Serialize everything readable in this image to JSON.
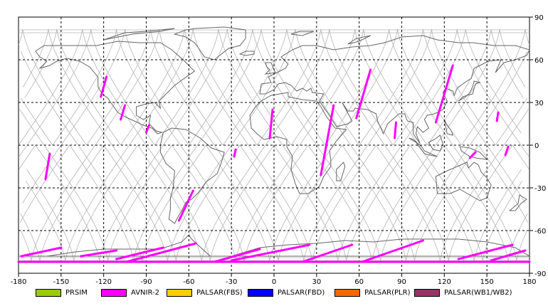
{
  "map": {
    "lon_ticks": [
      "-180",
      "-150",
      "-120",
      "-90",
      "-60",
      "-30",
      "0",
      "30",
      "60",
      "90",
      "120",
      "150",
      "180"
    ],
    "lat_ticks": [
      "90",
      "60",
      "30",
      "0",
      "-30",
      "-60",
      "-90"
    ],
    "lon_range": [
      -180,
      180
    ],
    "lat_range": [
      -90,
      90
    ],
    "grid": "dashed",
    "orbit_track_color": "#b4b4b4",
    "coastline_color": "#666666"
  },
  "legend": [
    {
      "label": "PRSIM",
      "color": "#99cc00"
    },
    {
      "label": "AVNIR-2",
      "color": "#ff00ff"
    },
    {
      "label": "PALSAR(FBS)",
      "color": "#ffcc00"
    },
    {
      "label": "PALSAR(FBD)",
      "color": "#0000ff"
    },
    {
      "label": "PALSAR(PLR)",
      "color": "#ff6600"
    },
    {
      "label": "PALSAR(WB1/WB2)",
      "color": "#993366"
    }
  ],
  "chart_data": {
    "type": "map",
    "series": [
      {
        "name": "AVNIR-2",
        "color": "#ff00ff",
        "segments": [
          [
            [
              -118,
              48
            ],
            [
              -122,
              34
            ]
          ],
          [
            [
              -105,
              28
            ],
            [
              -108,
              18
            ]
          ],
          [
            [
              -88,
              14
            ],
            [
              -90,
              9
            ]
          ],
          [
            [
              -158,
              -6
            ],
            [
              -161,
              -24
            ]
          ],
          [
            [
              -57,
              -32
            ],
            [
              -67,
              -53
            ]
          ],
          [
            [
              -27,
              -3
            ],
            [
              -28,
              -8
            ]
          ],
          [
            [
              -1,
              25
            ],
            [
              -3,
              5
            ]
          ],
          [
            [
              42,
              28
            ],
            [
              33,
              -21
            ]
          ],
          [
            [
              68,
              53
            ],
            [
              58,
              19
            ]
          ],
          [
            [
              86,
              16
            ],
            [
              85,
              5
            ]
          ],
          [
            [
              126,
              56
            ],
            [
              114,
              16
            ]
          ],
          [
            [
              158,
              23
            ],
            [
              157,
              17
            ]
          ],
          [
            [
              142,
              -5
            ],
            [
              138,
              -9
            ]
          ],
          [
            [
              165,
              -1
            ],
            [
              163,
              -7
            ]
          ],
          [
            [
              -178,
              -78
            ],
            [
              -150,
              -72
            ]
          ],
          [
            [
              -136,
              -78
            ],
            [
              -111,
              -74
            ]
          ],
          [
            [
              -111,
              -80
            ],
            [
              -78,
              -72
            ]
          ],
          [
            [
              -104,
              -82
            ],
            [
              -55,
              -69
            ]
          ],
          [
            [
              -42,
              -82
            ],
            [
              -10,
              -73
            ]
          ],
          [
            [
              -30,
              -81
            ],
            [
              25,
              -70
            ]
          ],
          [
            [
              20,
              -82
            ],
            [
              55,
              -70
            ]
          ],
          [
            [
              62,
              -82
            ],
            [
              105,
              -67
            ]
          ],
          [
            [
              130,
              -80
            ],
            [
              168,
              -70
            ]
          ],
          [
            [
              153,
              -81
            ],
            [
              177,
              -74
            ]
          ],
          [
            [
              -180,
              -82
            ],
            [
              180,
              -82
            ]
          ]
        ]
      }
    ]
  }
}
